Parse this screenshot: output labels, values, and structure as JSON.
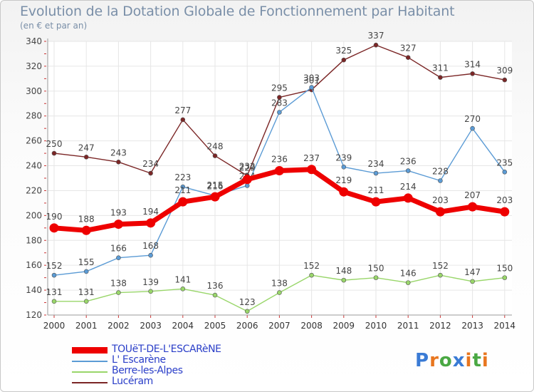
{
  "header": {
    "title": "Evolution de la Dotation Globale de Fonctionnement par Habitant",
    "subtitle": "(en € et par an)"
  },
  "logo": {
    "text": "Proxiti"
  },
  "chart_data": {
    "type": "line",
    "title": "Evolution de la Dotation Globale de Fonctionnement par Habitant",
    "subtitle": "(en € et par an)",
    "xlabel": "",
    "ylabel": "",
    "x": [
      "2000",
      "2001",
      "2002",
      "2003",
      "2004",
      "2005",
      "2006",
      "2007",
      "2008",
      "2009",
      "2010",
      "2011",
      "2012",
      "2013",
      "2014"
    ],
    "ylim": [
      120,
      340
    ],
    "yticks": [
      120,
      140,
      160,
      180,
      200,
      220,
      240,
      260,
      280,
      300,
      320,
      340
    ],
    "grid": true,
    "legend_position": "bottom-left",
    "series": [
      {
        "name": "Lucéram",
        "color": "#7b2626",
        "values": [
          250,
          247,
          243,
          234,
          277,
          248,
          232,
          295,
          301,
          325,
          337,
          327,
          311,
          314,
          309
        ],
        "labels": [
          "250",
          "247",
          "243",
          "234",
          "277",
          "248",
          "232",
          "295",
          "301",
          "325",
          "337",
          "327",
          "311",
          "314",
          "309"
        ]
      },
      {
        "name": "L' Escarène",
        "color": "#5b9bd5",
        "values": [
          152,
          155,
          166,
          168,
          223,
          216,
          224,
          283,
          303,
          239,
          234,
          236,
          228,
          270,
          235
        ],
        "labels": [
          "152",
          "155",
          "166",
          "168",
          "223",
          "216",
          "224",
          "283",
          "303",
          "239",
          "234",
          "236",
          "228",
          "270",
          "235"
        ]
      },
      {
        "name": "Berre-les-Alpes",
        "color": "#99d66a",
        "values": [
          131,
          131,
          138,
          139,
          141,
          136,
          123,
          138,
          152,
          148,
          150,
          146,
          152,
          147,
          150
        ],
        "labels": [
          "131",
          "131",
          "138",
          "139",
          "141",
          "136",
          "123",
          "138",
          "152",
          "148",
          "150",
          "146",
          "152",
          "147",
          "150"
        ]
      },
      {
        "name": "TOUëT-DE-L'ESCARèNE",
        "color": "#ee0000",
        "values": [
          190,
          188,
          193,
          194,
          211,
          215,
          229,
          236,
          237,
          219,
          211,
          214,
          203,
          207,
          203
        ],
        "labels": [
          "190",
          "188",
          "193",
          "194",
          "211",
          "215",
          "229",
          "236",
          "237",
          "219",
          "211",
          "214",
          "203",
          "207",
          "203"
        ]
      }
    ]
  },
  "legend": [
    {
      "name": "TOUëT-DE-L'ESCARèNE",
      "color": "#ee0000",
      "text_color": "#2a3ec8"
    },
    {
      "name": "L' Escarène",
      "color": "#5b9bd5",
      "text_color": "#2a3ec8"
    },
    {
      "name": "Berre-les-Alpes",
      "color": "#99d66a",
      "text_color": "#2a3ec8"
    },
    {
      "name": "Lucéram",
      "color": "#7b2626",
      "text_color": "#2a3ec8"
    }
  ]
}
